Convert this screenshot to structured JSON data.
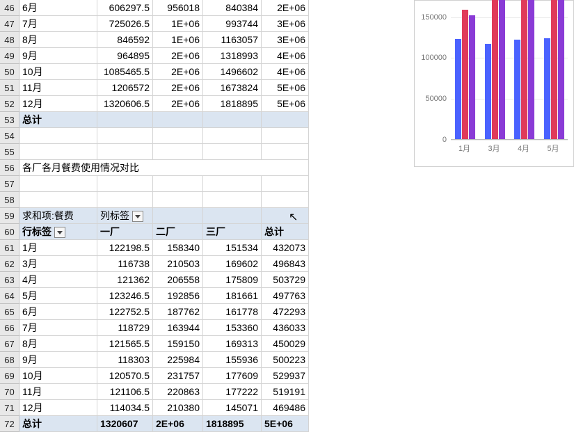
{
  "rows_top": [
    {
      "n": "46",
      "a": "6月",
      "b": "606297.5",
      "c": "956018",
      "d": "840384",
      "e": "2E+06"
    },
    {
      "n": "47",
      "a": "7月",
      "b": "725026.5",
      "c": "1E+06",
      "d": "993744",
      "e": "3E+06"
    },
    {
      "n": "48",
      "a": "8月",
      "b": "846592",
      "c": "1E+06",
      "d": "1163057",
      "e": "3E+06"
    },
    {
      "n": "49",
      "a": "9月",
      "b": "964895",
      "c": "2E+06",
      "d": "1318993",
      "e": "4E+06"
    },
    {
      "n": "50",
      "a": "10月",
      "b": "1085465.5",
      "c": "2E+06",
      "d": "1496602",
      "e": "4E+06"
    },
    {
      "n": "51",
      "a": "11月",
      "b": "1206572",
      "c": "2E+06",
      "d": "1673824",
      "e": "5E+06"
    },
    {
      "n": "52",
      "a": "12月",
      "b": "1320606.5",
      "c": "2E+06",
      "d": "1818895",
      "e": "5E+06"
    }
  ],
  "total1": {
    "n": "53",
    "label": "总计"
  },
  "blank": {
    "r54": "54",
    "r55": "55",
    "r57": "57",
    "r58": "58"
  },
  "title_row": {
    "n": "56",
    "text": "各厂各月餐费使用情况对比"
  },
  "pivot_top": {
    "n": "59",
    "label": "求和项:餐费",
    "col_label": "列标签"
  },
  "pivot_head": {
    "n": "60",
    "row_label": "行标签",
    "c1": "一厂",
    "c2": "二厂",
    "c3": "三厂",
    "ct": "总计"
  },
  "rows_bot": [
    {
      "n": "61",
      "a": "1月",
      "b": "122198.5",
      "c": "158340",
      "d": "151534",
      "e": "432073"
    },
    {
      "n": "62",
      "a": "3月",
      "b": "116738",
      "c": "210503",
      "d": "169602",
      "e": "496843"
    },
    {
      "n": "63",
      "a": "4月",
      "b": "121362",
      "c": "206558",
      "d": "175809",
      "e": "503729"
    },
    {
      "n": "64",
      "a": "5月",
      "b": "123246.5",
      "c": "192856",
      "d": "181661",
      "e": "497763"
    },
    {
      "n": "65",
      "a": "6月",
      "b": "122752.5",
      "c": "187762",
      "d": "161778",
      "e": "472293"
    },
    {
      "n": "66",
      "a": "7月",
      "b": "118729",
      "c": "163944",
      "d": "153360",
      "e": "436033"
    },
    {
      "n": "67",
      "a": "8月",
      "b": "121565.5",
      "c": "159150",
      "d": "169313",
      "e": "450029"
    },
    {
      "n": "68",
      "a": "9月",
      "b": "118303",
      "c": "225984",
      "d": "155936",
      "e": "500223"
    },
    {
      "n": "69",
      "a": "10月",
      "b": "120570.5",
      "c": "231757",
      "d": "177609",
      "e": "529937"
    },
    {
      "n": "70",
      "a": "11月",
      "b": "121106.5",
      "c": "220863",
      "d": "177222",
      "e": "519191"
    },
    {
      "n": "71",
      "a": "12月",
      "b": "114034.5",
      "c": "210380",
      "d": "145071",
      "e": "469486"
    }
  ],
  "total2": {
    "n": "72",
    "a": "总计",
    "b": "1320607",
    "c": "2E+06",
    "d": "1818895",
    "e": "5E+06"
  },
  "chart": {
    "ymax": 170000,
    "yticks": [
      0,
      50000,
      100000,
      150000
    ],
    "categories": [
      "1月",
      "3月",
      "4月",
      "5月"
    ],
    "series_colors": [
      "#4a62ff",
      "#e03a5a",
      "#8a3bd6"
    ],
    "groups": [
      [
        122199,
        158340,
        151534
      ],
      [
        116738,
        170000,
        170000
      ],
      [
        121362,
        170000,
        170000
      ],
      [
        123247,
        170000,
        170000
      ]
    ]
  }
}
